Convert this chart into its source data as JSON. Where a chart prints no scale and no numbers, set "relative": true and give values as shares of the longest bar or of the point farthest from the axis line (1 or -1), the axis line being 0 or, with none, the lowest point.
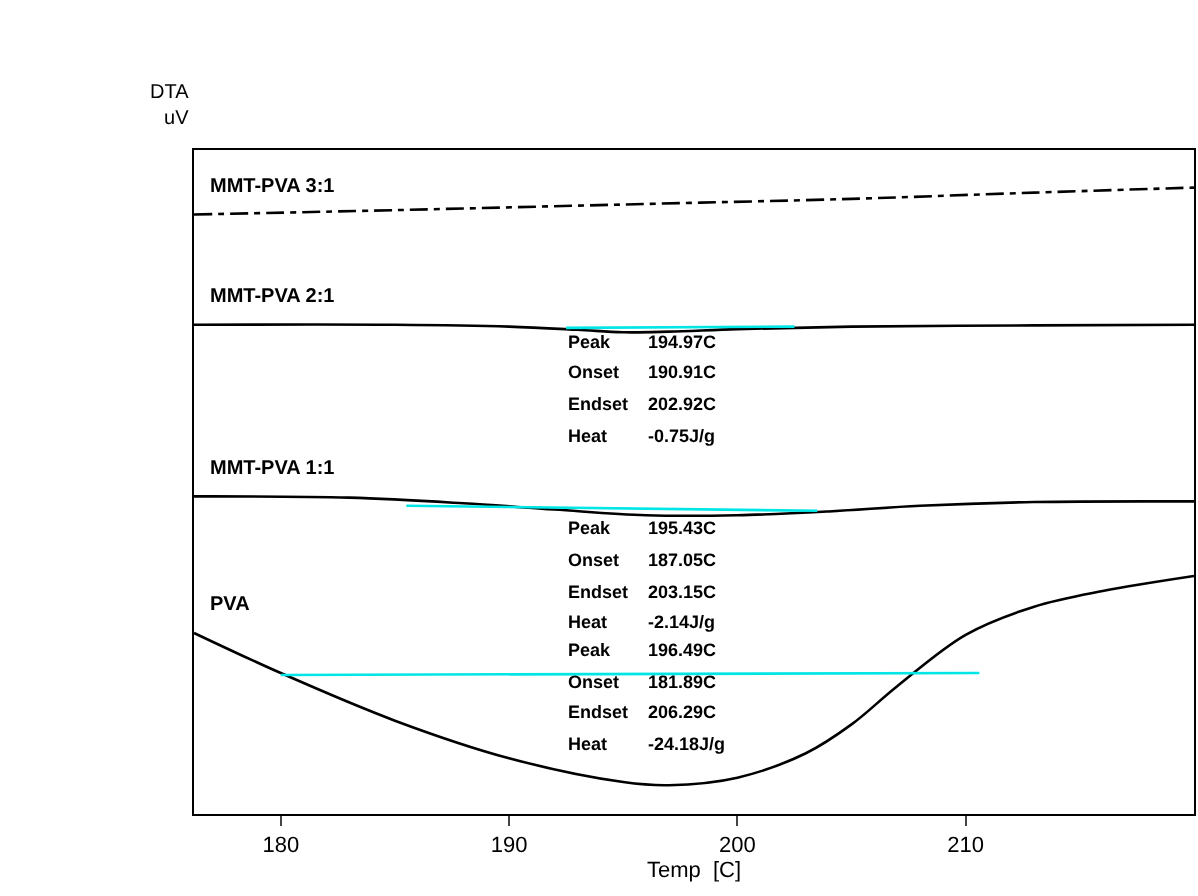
{
  "chart_data": {
    "type": "line",
    "relative": true,
    "xlabel": "Temp  [C]",
    "ylabel": "DTA\nuV",
    "xlim": [
      176.2,
      220
    ],
    "xticks": [
      180,
      190,
      200,
      210
    ],
    "legend": false,
    "marker": "none",
    "series": [
      {
        "name": "MMT-PVA 3:1",
        "color": "#000000",
        "line_style": "dashed",
        "x": [
          176.2,
          185,
          195,
          205,
          213,
          220
        ],
        "values": [
          0.957,
          0.964,
          0.973,
          0.982,
          0.992,
          1.0
        ]
      },
      {
        "name": "MMT-PVA 2:1",
        "color": "#000000",
        "x": [
          176.2,
          185,
          190,
          193,
          195,
          197,
          200,
          205,
          213,
          220
        ],
        "values": [
          0.781,
          0.781,
          0.778,
          0.773,
          0.769,
          0.77,
          0.774,
          0.778,
          0.78,
          0.781
        ]
      },
      {
        "name": "MMT-PVA 1:1",
        "color": "#000000",
        "x": [
          176.2,
          183,
          188,
          192,
          196,
          200,
          204,
          208,
          213,
          220
        ],
        "values": [
          0.507,
          0.505,
          0.496,
          0.486,
          0.477,
          0.477,
          0.483,
          0.492,
          0.498,
          0.499
        ]
      },
      {
        "name": "PVA",
        "color": "#000000",
        "x": [
          176.2,
          180,
          185,
          190,
          195,
          197,
          200,
          203,
          205,
          207,
          210,
          213,
          216,
          220
        ],
        "values": [
          0.289,
          0.225,
          0.149,
          0.089,
          0.051,
          0.046,
          0.058,
          0.097,
          0.143,
          0.204,
          0.286,
          0.331,
          0.356,
          0.38
        ]
      },
      {
        "color": "#00e5e5",
        "x": [
          192.5,
          202.5
        ],
        "values": [
          0.776,
          0.778
        ]
      },
      {
        "color": "#00e5e5",
        "x": [
          185.5,
          203.5
        ],
        "values": [
          0.492,
          0.484
        ]
      },
      {
        "color": "#00e5e5",
        "x": [
          180,
          210.6
        ],
        "values": [
          0.222,
          0.225
        ]
      }
    ],
    "annotations": [
      "Peak 194.97C",
      "Onset 190.91C",
      "Endset 202.92C",
      "Heat -0.75J/g",
      "Peak 195.43C",
      "Onset 187.05C",
      "Endset 203.15C",
      "Heat -2.14J/g",
      "Peak 196.49C",
      "Onset 181.89C",
      "Endset 206.29C",
      "Heat -24.18J/g"
    ]
  }
}
